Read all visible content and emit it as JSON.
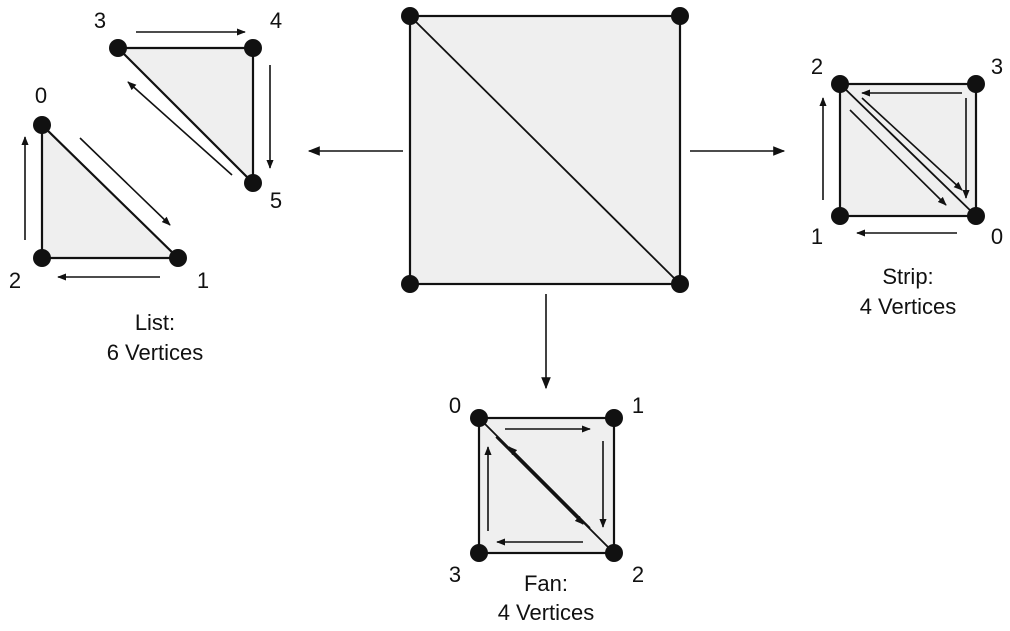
{
  "list": {
    "vertex_labels": [
      "0",
      "1",
      "2",
      "3",
      "4",
      "5"
    ],
    "caption": [
      "List:",
      "6 Vertices"
    ]
  },
  "strip": {
    "vertex_labels": [
      "0",
      "1",
      "2",
      "3"
    ],
    "caption": [
      "Strip:",
      "4 Vertices"
    ]
  },
  "fan": {
    "vertex_labels": [
      "0",
      "1",
      "2",
      "3"
    ],
    "caption": [
      "Fan:",
      "4 Vertices"
    ]
  }
}
